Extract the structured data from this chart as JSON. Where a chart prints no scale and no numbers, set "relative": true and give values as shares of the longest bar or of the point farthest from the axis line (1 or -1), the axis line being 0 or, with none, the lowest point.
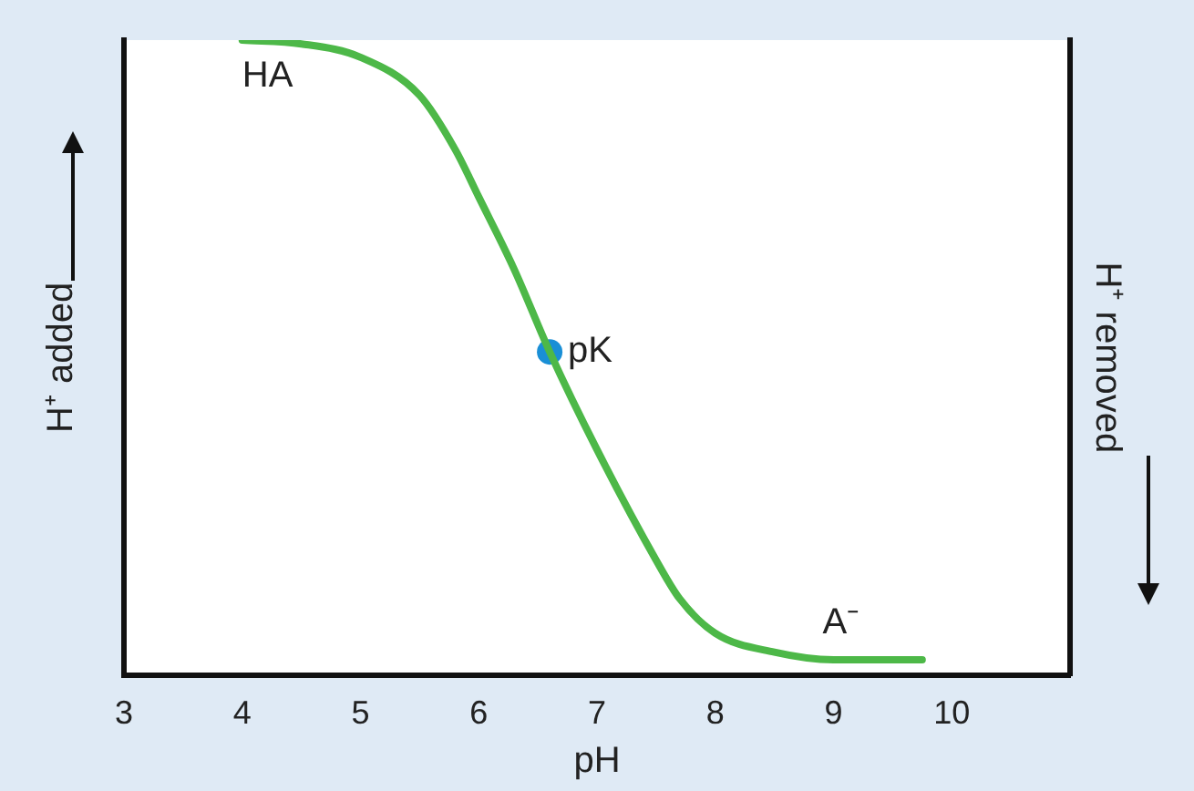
{
  "chart_data": {
    "type": "line",
    "relative": true,
    "xlabel": "pH",
    "ylabel": "H⁺ added",
    "y2label": "H⁺ removed",
    "xlim": [
      3,
      11
    ],
    "xticks": [
      3,
      4,
      5,
      6,
      7,
      8,
      9,
      10
    ],
    "grid": false,
    "series": [
      {
        "type": "line",
        "color": "#4db848",
        "marker": "none",
        "x": [
          4,
          4.5,
          5,
          5.5,
          5.8,
          6,
          6.3,
          6.6,
          7,
          7.5,
          7.7,
          8,
          8.5,
          9,
          9.5,
          9.75
        ],
        "values": [
          1,
          0.994,
          0.973,
          0.913,
          0.828,
          0.753,
          0.639,
          0.509,
          0.355,
          0.181,
          0.12,
          0.066,
          0.036,
          0.024,
          0.024,
          0.024
        ]
      },
      {
        "type": "scatter",
        "color": "#1a8fd6",
        "marker": "circle",
        "x": [
          6.6
        ],
        "values": [
          0.509
        ]
      }
    ],
    "annotations": [
      {
        "text": "HA",
        "x": 4,
        "y": 1
      },
      {
        "text": "pK",
        "x": 6.6,
        "y": 0.509
      },
      {
        "text": "A⁻",
        "x": 9,
        "y": 0.024
      }
    ]
  }
}
